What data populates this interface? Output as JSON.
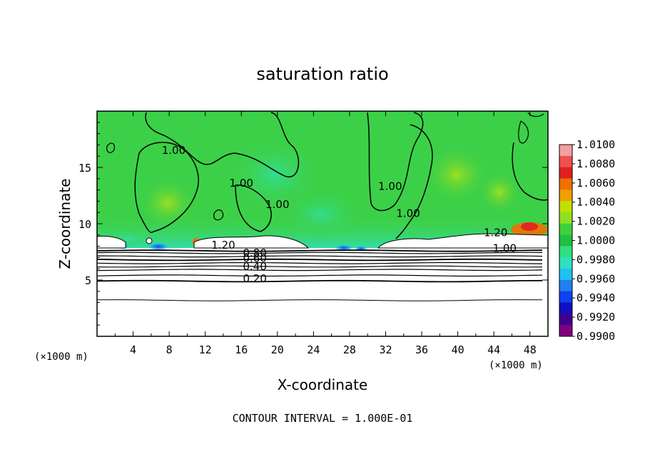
{
  "chart_data": {
    "type": "heatmap",
    "title": "saturation ratio",
    "xlabel": "X-coordinate",
    "ylabel": "Z-coordinate",
    "x_unit_left": "(×1000 m)",
    "x_unit_right": "(×1000 m)",
    "xlim": [
      0,
      50
    ],
    "ylim": [
      0,
      20
    ],
    "x_ticks": [
      4,
      8,
      12,
      16,
      20,
      24,
      28,
      32,
      36,
      40,
      44,
      48
    ],
    "y_ticks": [
      5,
      10,
      15
    ],
    "colorbar": {
      "ticks": [
        "1.0100",
        "1.0080",
        "1.0060",
        "1.0040",
        "1.0020",
        "1.0000",
        "0.9980",
        "0.9960",
        "0.9940",
        "0.9920",
        "0.9900"
      ],
      "colors": [
        "#f4a0a0",
        "#f05050",
        "#e02020",
        "#f07000",
        "#f0a000",
        "#c0e000",
        "#90e020",
        "#40d040",
        "#20c040",
        "#30e080",
        "#30e0c0",
        "#20c0f0",
        "#2080f0",
        "#1040f0",
        "#1010c0",
        "#400090",
        "#800080"
      ]
    },
    "contour_labels": [
      {
        "text": "1.00",
        "x": 8.5,
        "y": 16.2
      },
      {
        "text": "1.00",
        "x": 16.0,
        "y": 13.3
      },
      {
        "text": "1.00",
        "x": 20.0,
        "y": 11.4
      },
      {
        "text": "1.00",
        "x": 32.5,
        "y": 13.0
      },
      {
        "text": "1.00",
        "x": 34.5,
        "y": 10.6
      },
      {
        "text": "1.20",
        "x": 14.0,
        "y": 7.8
      },
      {
        "text": "1.20",
        "x": 44.2,
        "y": 8.9
      },
      {
        "text": "1.00",
        "x": 45.2,
        "y": 7.5
      },
      {
        "text": "0.80",
        "x": 17.5,
        "y": 7.1
      },
      {
        "text": "0.60",
        "x": 17.5,
        "y": 6.6
      },
      {
        "text": "0.40",
        "x": 17.5,
        "y": 5.9
      },
      {
        "text": "0.20",
        "x": 17.5,
        "y": 4.8
      }
    ],
    "contour_lines": [
      {
        "y": 7.6,
        "w": 1.8
      },
      {
        "y": 7.4,
        "w": 1.2
      },
      {
        "y": 7.1,
        "w": 1.2
      },
      {
        "y": 6.8,
        "w": 1.8
      },
      {
        "y": 6.5,
        "w": 1.2
      },
      {
        "y": 6.2,
        "w": 1.2
      },
      {
        "y": 5.9,
        "w": 1.2
      },
      {
        "y": 5.4,
        "w": 1.2
      },
      {
        "y": 4.9,
        "w": 1.8
      },
      {
        "y": 3.2,
        "w": 1.0
      }
    ],
    "footnote": "CONTOUR INTERVAL = 1.000E-01"
  }
}
